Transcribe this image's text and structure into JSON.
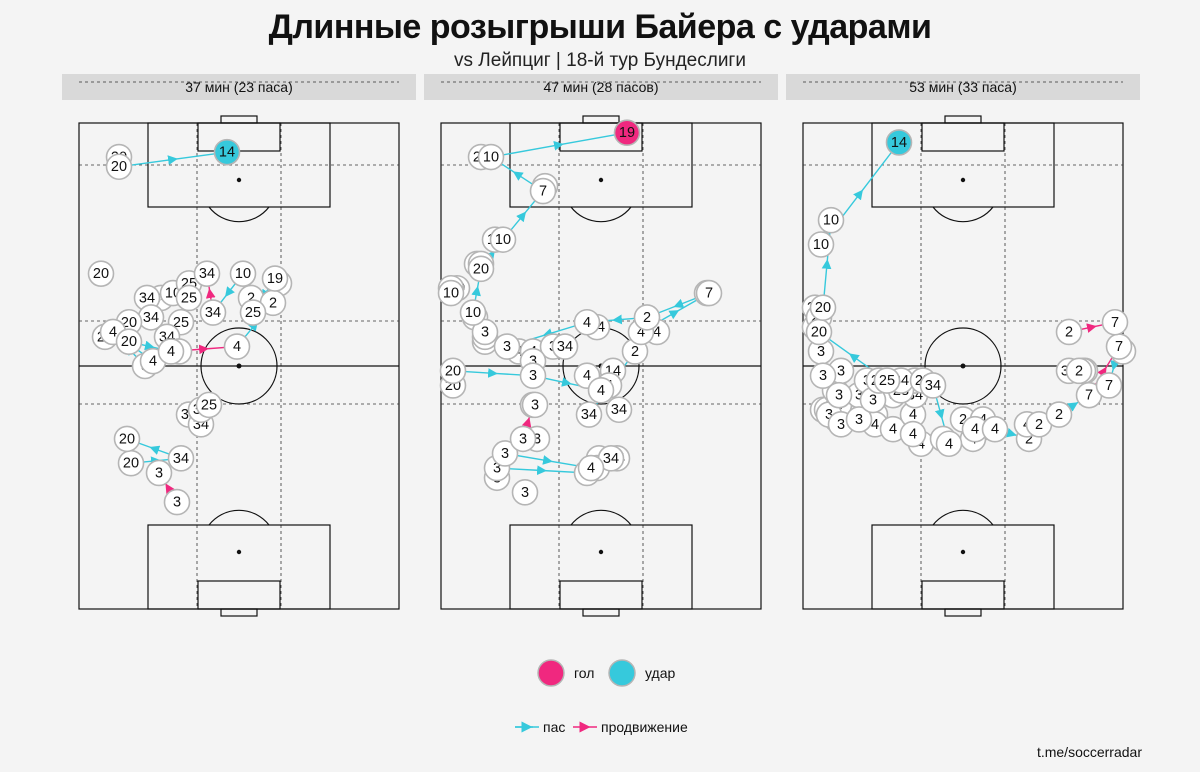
{
  "title": "Длинные розыгрыши Байера с ударами",
  "subtitle": "vs Лейпциг | 18-й тур Бундеслиги",
  "credit": "t.me/soccerradar",
  "colors": {
    "pass": "#36c9dc",
    "carry": "#f0287f",
    "goal": "#f0287f",
    "shot": "#36c9dc",
    "node_fill": "#ffffff",
    "node_stroke": "#b5b5b5"
  },
  "legend": {
    "markers": [
      {
        "label": "гол",
        "color": "#f0287f"
      },
      {
        "label": "удар",
        "color": "#36c9dc"
      }
    ],
    "lines": [
      {
        "label": "пас",
        "color": "#36c9dc"
      },
      {
        "label": "продвижение",
        "color": "#f0287f"
      }
    ]
  },
  "chart_data": [
    {
      "type": "pitch-sequence",
      "panel_title": "37 мин (23 паса)",
      "outcome": "удар",
      "events": [
        {
          "p": "3",
          "x": 33,
          "y": 50,
          "t": "pass"
        },
        {
          "p": "4",
          "x": 17,
          "y": 57,
          "t": "pass"
        },
        {
          "p": "4",
          "x": 37,
          "y": 51,
          "t": null
        },
        {
          "p": "3",
          "x": 49,
          "y": 22,
          "t": "carry"
        },
        {
          "p": "3",
          "x": 40,
          "y": 28,
          "t": null
        },
        {
          "p": "20",
          "x": 26,
          "y": 30,
          "t": "pass"
        },
        {
          "p": "34",
          "x": 51,
          "y": 31,
          "t": "pass"
        },
        {
          "p": "20",
          "x": 24,
          "y": 35,
          "t": null
        },
        {
          "p": "34",
          "x": 61,
          "y": 38,
          "t": "carry"
        },
        {
          "p": "34",
          "x": 61,
          "y": 41,
          "t": "pass"
        },
        {
          "p": "25",
          "x": 65,
          "y": 42,
          "t": null
        },
        {
          "p": "20",
          "x": 25,
          "y": 55,
          "t": "pass"
        },
        {
          "p": "4",
          "x": 46,
          "y": 53,
          "t": "carry"
        },
        {
          "p": "4",
          "x": 79,
          "y": 54,
          "t": "pass"
        },
        {
          "p": "2",
          "x": 97,
          "y": 63,
          "t": "pass"
        },
        {
          "p": "19",
          "x": 98,
          "y": 68,
          "t": "pass"
        },
        {
          "p": "25",
          "x": 87,
          "y": 61,
          "t": "pass"
        },
        {
          "p": "10",
          "x": 82,
          "y": 69,
          "t": "pass"
        },
        {
          "p": "34",
          "x": 67,
          "y": 61,
          "t": "carry"
        },
        {
          "p": "34",
          "x": 64,
          "y": 69,
          "t": null
        },
        {
          "p": "20",
          "x": 20,
          "y": 93,
          "t": "pass"
        },
        {
          "p": "20",
          "x": 20,
          "y": 91,
          "t": "pass"
        },
        {
          "p": "14",
          "x": 74,
          "y": 94,
          "t": "shot"
        }
      ],
      "extra_nodes": [
        {
          "p": "20",
          "x": 11,
          "y": 69
        },
        {
          "p": "34",
          "x": 41,
          "y": 64
        },
        {
          "p": "10",
          "x": 47,
          "y": 65
        },
        {
          "p": "25",
          "x": 55,
          "y": 67
        },
        {
          "p": "25",
          "x": 55,
          "y": 64
        },
        {
          "p": "34",
          "x": 34,
          "y": 64
        },
        {
          "p": "34",
          "x": 36,
          "y": 60
        },
        {
          "p": "25",
          "x": 51,
          "y": 59
        },
        {
          "p": "34",
          "x": 44,
          "y": 56
        },
        {
          "p": "3",
          "x": 50,
          "y": 53
        },
        {
          "p": "20",
          "x": 13,
          "y": 56
        },
        {
          "p": "20",
          "x": 25,
          "y": 59
        },
        {
          "p": "34",
          "x": 55,
          "y": 40
        },
        {
          "p": "19",
          "x": 100,
          "y": 67
        },
        {
          "p": "2",
          "x": 86,
          "y": 64
        }
      ]
    },
    {
      "type": "pitch-sequence",
      "panel_title": "47 мин (28 пасов)",
      "outcome": "гол",
      "events": [
        {
          "p": "3",
          "x": 28,
          "y": 29,
          "t": "pass"
        },
        {
          "p": "4",
          "x": 73,
          "y": 28,
          "t": "pass"
        },
        {
          "p": "34",
          "x": 85,
          "y": 31,
          "t": null
        },
        {
          "p": "3",
          "x": 32,
          "y": 32,
          "t": "pass"
        },
        {
          "p": "4",
          "x": 75,
          "y": 29,
          "t": null
        },
        {
          "p": "3",
          "x": 41,
          "y": 35,
          "t": "carry"
        },
        {
          "p": "3",
          "x": 46,
          "y": 42,
          "t": "pass"
        },
        {
          "p": "3",
          "x": 47,
          "y": 42,
          "t": null
        },
        {
          "p": "20",
          "x": 6,
          "y": 49,
          "t": "pass"
        },
        {
          "p": "3",
          "x": 46,
          "y": 48,
          "t": "pass"
        },
        {
          "p": "4",
          "x": 80,
          "y": 45,
          "t": null
        },
        {
          "p": "34",
          "x": 74,
          "y": 40,
          "t": "pass"
        },
        {
          "p": "2",
          "x": 97,
          "y": 53,
          "t": "pass"
        },
        {
          "p": "4",
          "x": 100,
          "y": 57,
          "t": "pass"
        },
        {
          "p": "7",
          "x": 134,
          "y": 65,
          "t": "pass"
        },
        {
          "p": "2",
          "x": 103,
          "y": 60,
          "t": "pass"
        },
        {
          "p": "4",
          "x": 73,
          "y": 59,
          "t": "pass"
        },
        {
          "p": "3",
          "x": 33,
          "y": 54,
          "t": "pass"
        },
        {
          "p": "10",
          "x": 16,
          "y": 61,
          "t": "pass"
        },
        {
          "p": "20",
          "x": 20,
          "y": 70,
          "t": "pass"
        },
        {
          "p": "10",
          "x": 31,
          "y": 76,
          "t": "pass"
        },
        {
          "p": "7",
          "x": 51,
          "y": 86,
          "t": "pass"
        },
        {
          "p": "10",
          "x": 25,
          "y": 93,
          "t": "pass"
        },
        {
          "p": "19",
          "x": 93,
          "y": 98,
          "t": "goal"
        }
      ],
      "extra_nodes": [
        {
          "p": "20",
          "x": 20,
          "y": 93
        },
        {
          "p": "7",
          "x": 52,
          "y": 87
        },
        {
          "p": "10",
          "x": 27,
          "y": 76
        },
        {
          "p": "20",
          "x": 18,
          "y": 71
        },
        {
          "p": "20",
          "x": 20,
          "y": 71
        },
        {
          "p": "20",
          "x": 8,
          "y": 66
        },
        {
          "p": "20",
          "x": 5,
          "y": 66
        },
        {
          "p": "10",
          "x": 5,
          "y": 65
        },
        {
          "p": "10",
          "x": 17,
          "y": 60
        },
        {
          "p": "3",
          "x": 22,
          "y": 55
        },
        {
          "p": "3",
          "x": 22,
          "y": 56
        },
        {
          "p": "3",
          "x": 22,
          "y": 57
        },
        {
          "p": "4",
          "x": 39,
          "y": 53
        },
        {
          "p": "4",
          "x": 46,
          "y": 53
        },
        {
          "p": "3",
          "x": 56,
          "y": 54
        },
        {
          "p": "34",
          "x": 62,
          "y": 54
        },
        {
          "p": "34",
          "x": 78,
          "y": 58
        },
        {
          "p": "4",
          "x": 108,
          "y": 57
        },
        {
          "p": "7",
          "x": 133,
          "y": 65
        },
        {
          "p": "14",
          "x": 86,
          "y": 49
        },
        {
          "p": "4",
          "x": 84,
          "y": 46
        },
        {
          "p": "34",
          "x": 89,
          "y": 41
        },
        {
          "p": "4",
          "x": 73,
          "y": 48
        },
        {
          "p": "3",
          "x": 46,
          "y": 51
        },
        {
          "p": "20",
          "x": 6,
          "y": 46
        },
        {
          "p": "4",
          "x": 79,
          "y": 31
        },
        {
          "p": "4",
          "x": 78,
          "y": 29
        },
        {
          "p": "3",
          "x": 48,
          "y": 35
        },
        {
          "p": "3",
          "x": 42,
          "y": 24
        },
        {
          "p": "34",
          "x": 88,
          "y": 31
        },
        {
          "p": "3",
          "x": 28,
          "y": 27
        }
      ]
    },
    {
      "type": "pitch-sequence",
      "panel_title": "53 мин (33 паса)",
      "outcome": "удар",
      "events": [
        {
          "p": "3",
          "x": 13,
          "y": 40,
          "t": "pass"
        },
        {
          "p": "3",
          "x": 19,
          "y": 38,
          "t": "pass"
        },
        {
          "p": "3",
          "x": 28,
          "y": 39,
          "t": "pass"
        },
        {
          "p": "3",
          "x": 35,
          "y": 43,
          "t": "carry"
        },
        {
          "p": "28",
          "x": 38,
          "y": 47,
          "t": "pass"
        },
        {
          "p": "34",
          "x": 65,
          "y": 46,
          "t": "pass"
        },
        {
          "p": "4",
          "x": 73,
          "y": 34,
          "t": "pass"
        },
        {
          "p": "4",
          "x": 96,
          "y": 37,
          "t": "pass"
        },
        {
          "p": "2",
          "x": 113,
          "y": 35,
          "t": "pass"
        },
        {
          "p": "4",
          "x": 112,
          "y": 38,
          "t": "pass"
        },
        {
          "p": "2",
          "x": 118,
          "y": 38,
          "t": "pass"
        },
        {
          "p": "2",
          "x": 128,
          "y": 40,
          "t": "pass"
        },
        {
          "p": "7",
          "x": 143,
          "y": 44,
          "t": "carry"
        },
        {
          "p": "7",
          "x": 158,
          "y": 54,
          "t": "pass"
        },
        {
          "p": "7",
          "x": 153,
          "y": 46,
          "t": null
        },
        {
          "p": "34",
          "x": 133,
          "y": 49,
          "t": "pass"
        },
        {
          "p": "2",
          "x": 138,
          "y": 49,
          "t": null
        },
        {
          "p": "2",
          "x": 133,
          "y": 57,
          "t": "carry"
        },
        {
          "p": "7",
          "x": 156,
          "y": 59,
          "t": null
        },
        {
          "p": "20",
          "x": 8,
          "y": 60,
          "t": "pass"
        },
        {
          "p": "3",
          "x": 10,
          "y": 48,
          "t": "pass"
        },
        {
          "p": "3",
          "x": 18,
          "y": 44,
          "t": "pass"
        },
        {
          "p": "25",
          "x": 42,
          "y": 47,
          "t": "pass"
        },
        {
          "p": "20",
          "x": 8,
          "y": 57,
          "t": "pass"
        },
        {
          "p": "20",
          "x": 10,
          "y": 62,
          "t": "pass"
        },
        {
          "p": "10",
          "x": 14,
          "y": 80,
          "t": "pass"
        },
        {
          "p": "10",
          "x": 9,
          "y": 75,
          "t": "pass"
        },
        {
          "p": "14",
          "x": 48,
          "y": 96,
          "t": "shot"
        }
      ],
      "extra_nodes": [
        {
          "p": "3",
          "x": 10,
          "y": 41
        },
        {
          "p": "3",
          "x": 12,
          "y": 41
        },
        {
          "p": "3",
          "x": 17,
          "y": 39
        },
        {
          "p": "3",
          "x": 16,
          "y": 45
        },
        {
          "p": "3",
          "x": 18,
          "y": 42
        },
        {
          "p": "3",
          "x": 28,
          "y": 44
        },
        {
          "p": "4",
          "x": 36,
          "y": 40
        },
        {
          "p": "4",
          "x": 36,
          "y": 38
        },
        {
          "p": "4",
          "x": 45,
          "y": 37
        },
        {
          "p": "4",
          "x": 55,
          "y": 40
        },
        {
          "p": "4",
          "x": 59,
          "y": 34
        },
        {
          "p": "4",
          "x": 55,
          "y": 36
        },
        {
          "p": "2",
          "x": 80,
          "y": 39
        },
        {
          "p": "2",
          "x": 88,
          "y": 37
        },
        {
          "p": "4",
          "x": 85,
          "y": 35
        },
        {
          "p": "4",
          "x": 90,
          "y": 39
        },
        {
          "p": "4",
          "x": 86,
          "y": 37
        },
        {
          "p": "4",
          "x": 70,
          "y": 35
        },
        {
          "p": "34",
          "x": 56,
          "y": 44
        },
        {
          "p": "25",
          "x": 56,
          "y": 47
        },
        {
          "p": "24",
          "x": 48,
          "y": 45
        },
        {
          "p": "3",
          "x": 45,
          "y": 44
        },
        {
          "p": "28",
          "x": 49,
          "y": 45
        },
        {
          "p": "34",
          "x": 49,
          "y": 47
        },
        {
          "p": "25",
          "x": 60,
          "y": 47
        },
        {
          "p": "3",
          "x": 32,
          "y": 47
        },
        {
          "p": "3",
          "x": 19,
          "y": 49
        },
        {
          "p": "20",
          "x": 6,
          "y": 58
        },
        {
          "p": "20",
          "x": 6,
          "y": 62
        },
        {
          "p": "3",
          "x": 9,
          "y": 53
        },
        {
          "p": "34",
          "x": 141,
          "y": 49
        },
        {
          "p": "7",
          "x": 160,
          "y": 53
        },
        {
          "p": "2",
          "x": 140,
          "y": 49
        }
      ]
    }
  ]
}
